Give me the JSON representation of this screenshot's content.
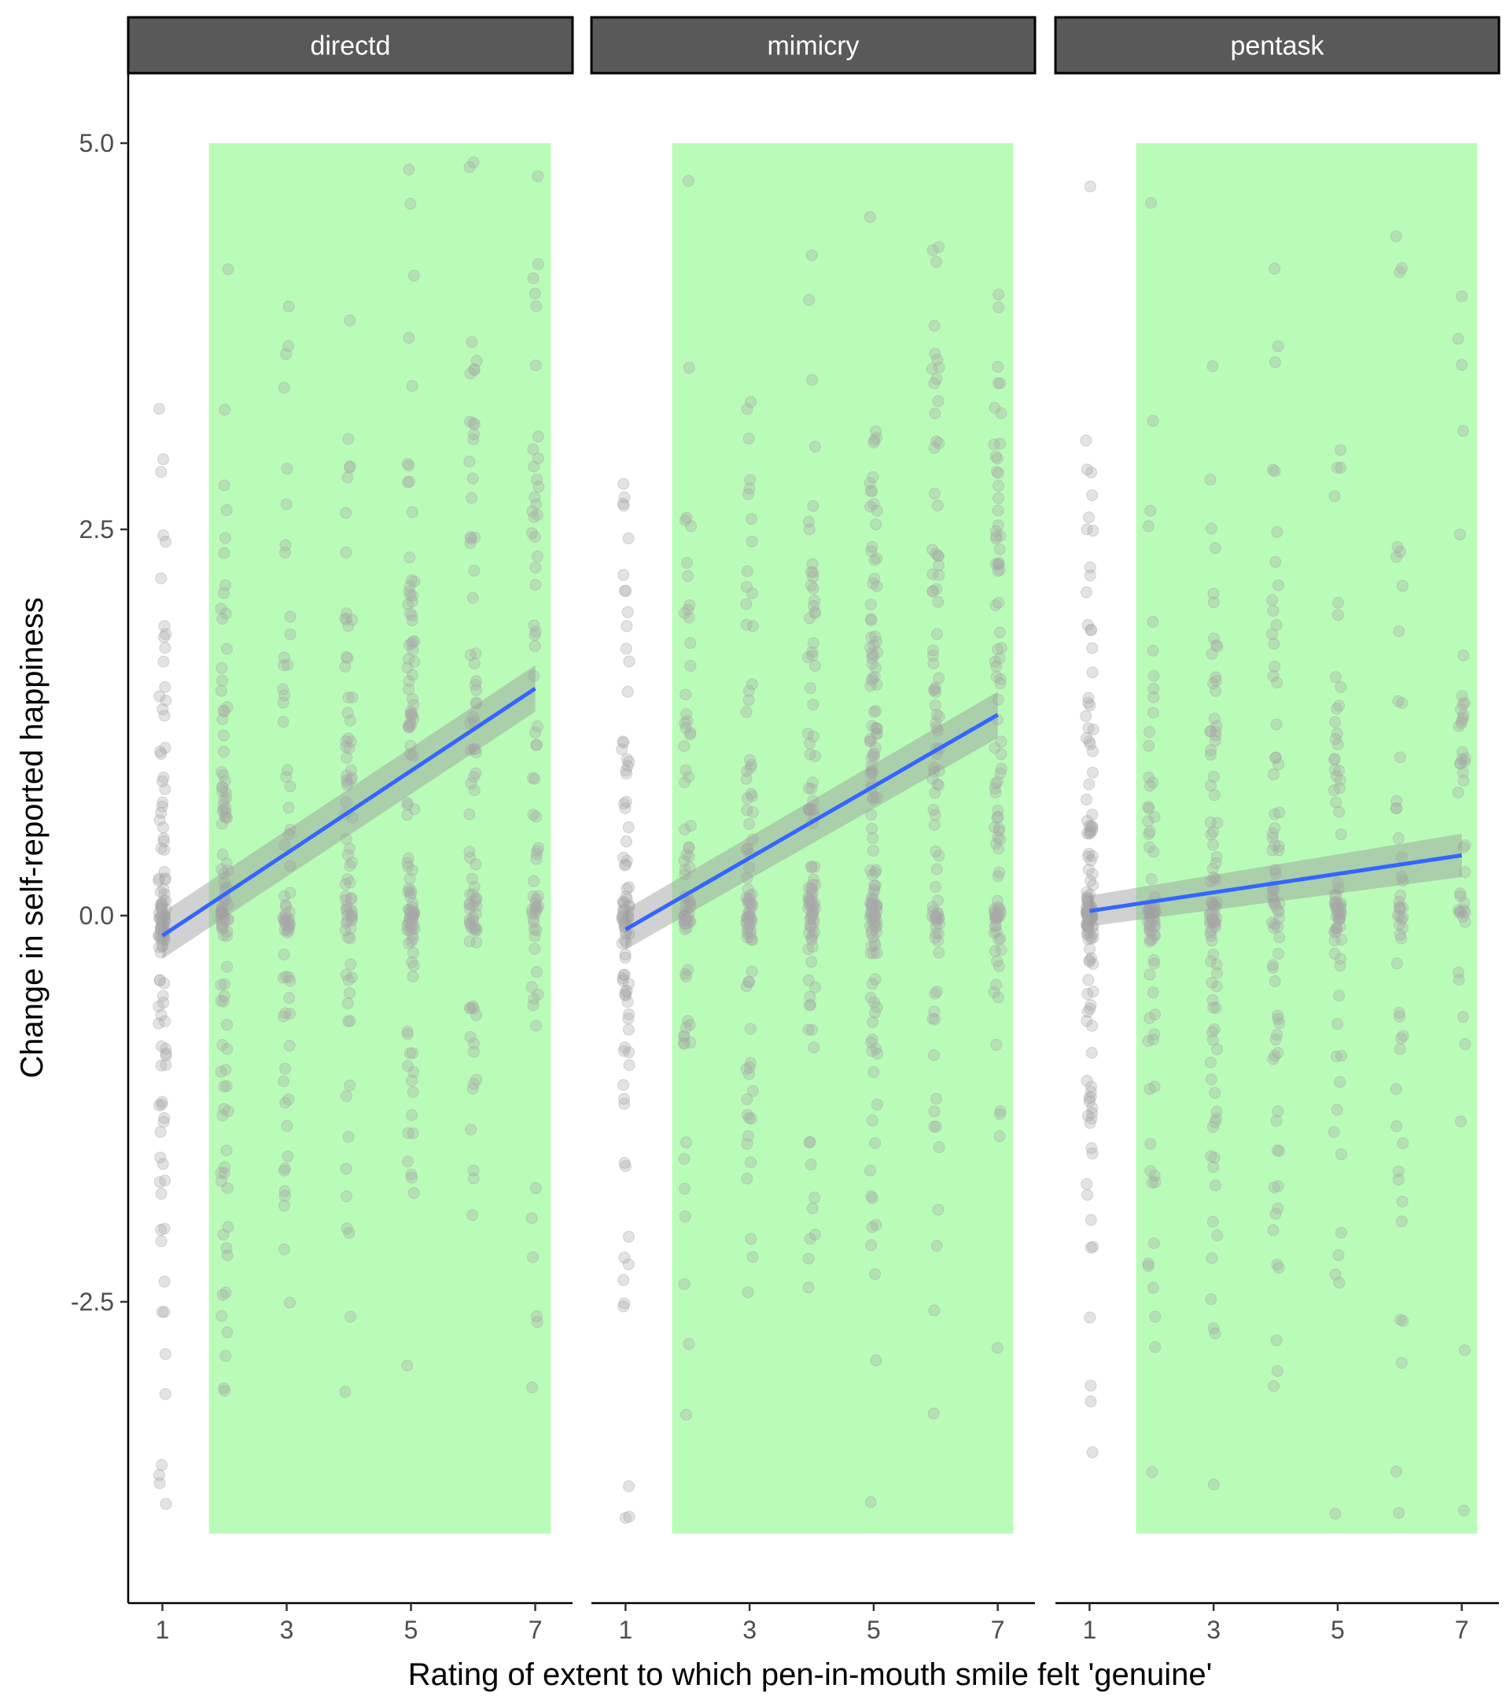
{
  "chart_data": {
    "type": "scatter",
    "xlabel": "Rating of extent to which pen-in-mouth smile felt 'genuine'",
    "ylabel": "Change in self-reported happiness",
    "x_ticks": [
      1,
      3,
      5,
      7
    ],
    "y_ticks": [
      5.0,
      2.5,
      0.0,
      -2.5
    ],
    "y_tick_labels": [
      "5.0",
      "2.5",
      "0.0",
      "-2.5"
    ],
    "xlim": [
      0.45,
      7.6
    ],
    "ylim": [
      -4.5,
      5.5
    ],
    "colors": {
      "points": "#a9a9a9",
      "fit_line": "#3366ff",
      "confidence_band": "#999999",
      "highlight_band": "#b9fcb8",
      "strip_fill": "#595959",
      "strip_text": "#ffffff"
    },
    "highlight_region": {
      "x_range": [
        1.75,
        7.25
      ],
      "y_range": [
        -4.0,
        5.0
      ]
    },
    "panels": [
      {
        "name": "directd",
        "fit": {
          "x": [
            1,
            7
          ],
          "y": [
            -0.13,
            1.47
          ],
          "se_lower": [
            -0.28,
            1.32
          ],
          "se_upper": [
            0.02,
            1.62
          ]
        },
        "point_counts": [
          120,
          105,
          70,
          80,
          115,
          85,
          70
        ]
      },
      {
        "name": "mimicry",
        "fit": {
          "x": [
            1,
            7
          ],
          "y": [
            -0.09,
            1.3
          ],
          "se_lower": [
            -0.22,
            1.15
          ],
          "se_upper": [
            0.04,
            1.45
          ]
        },
        "point_counts": [
          95,
          75,
          90,
          100,
          140,
          95,
          95
        ]
      },
      {
        "name": "pentask",
        "fit": {
          "x": [
            1,
            7
          ],
          "y": [
            0.03,
            0.39
          ],
          "se_lower": [
            -0.07,
            0.25
          ],
          "se_upper": [
            0.13,
            0.53
          ]
        },
        "point_counts": [
          140,
          80,
          95,
          75,
          75,
          50,
          45
        ]
      }
    ]
  }
}
